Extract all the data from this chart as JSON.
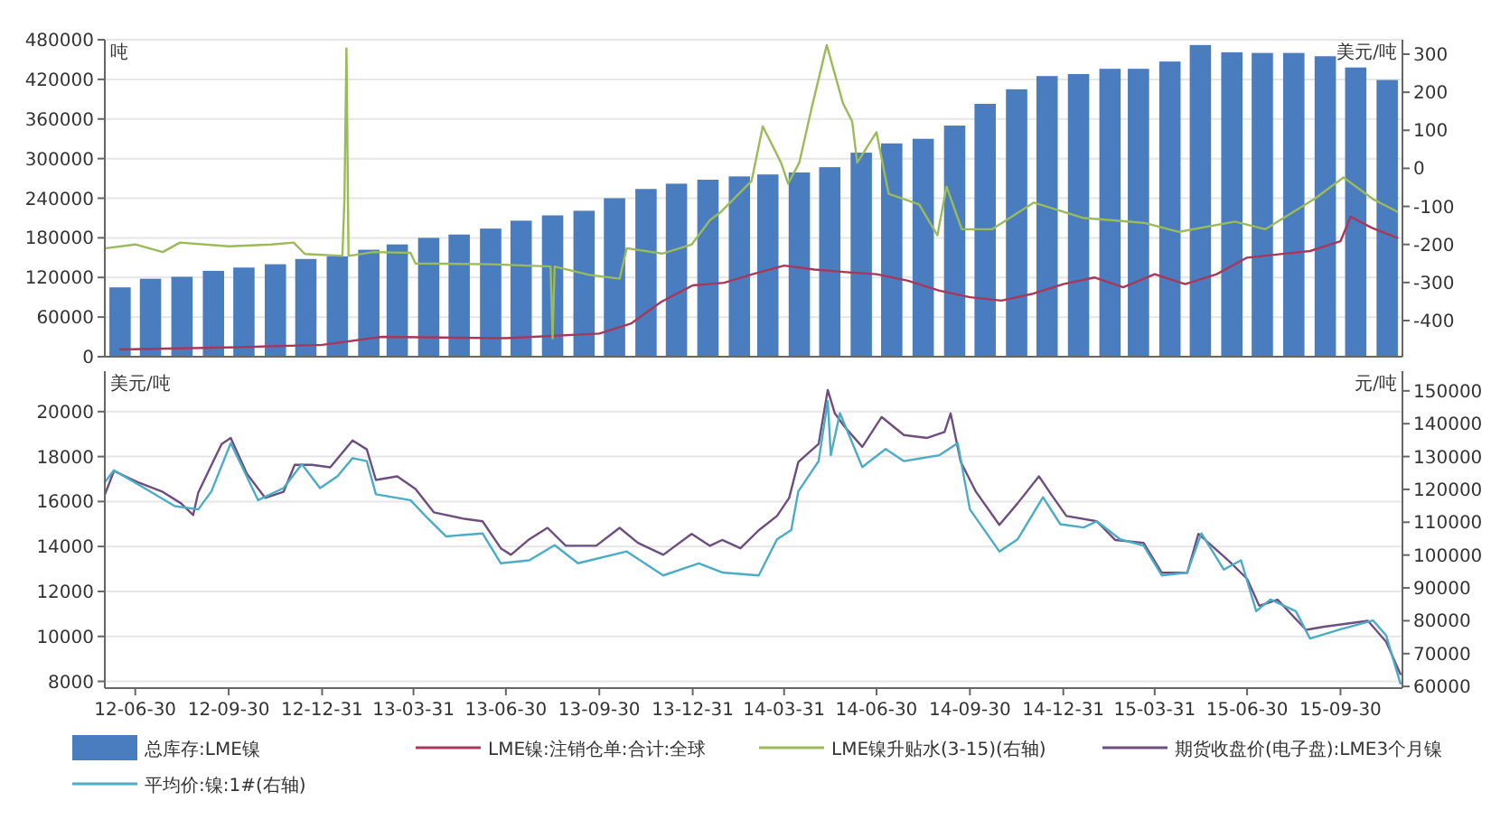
{
  "chart_data": [
    {
      "type": "bar",
      "ylabel": "吨",
      "y2label": "美元/吨",
      "xlim": [
        "2012-05-31",
        "2015-11-30"
      ],
      "ylim": [
        0,
        480000
      ],
      "yticks": [
        0,
        60000,
        120000,
        180000,
        240000,
        300000,
        360000,
        420000,
        480000
      ],
      "y2lim": [
        -495,
        338
      ],
      "y2ticks": [
        -400,
        -300,
        -200,
        -100,
        0,
        100,
        200,
        300
      ],
      "grid": "y",
      "legend": "bottom",
      "tick_labels": "y",
      "series": [
        {
          "name": "总库存:LME镍",
          "color": "#4a7dbf",
          "x": [
            "2012-06-15",
            "2012-07-15",
            "2012-08-15",
            "2012-09-15",
            "2012-10-15",
            "2012-11-15",
            "2012-12-15",
            "2013-01-15",
            "2013-02-15",
            "2013-03-15",
            "2013-04-15",
            "2013-05-15",
            "2013-06-15",
            "2013-07-15",
            "2013-08-15",
            "2013-09-15",
            "2013-10-15",
            "2013-11-15",
            "2013-12-15",
            "2014-01-15",
            "2014-02-15",
            "2014-03-15",
            "2014-04-15",
            "2014-05-15",
            "2014-06-15",
            "2014-07-15",
            "2014-08-15",
            "2014-09-15",
            "2014-10-15",
            "2014-11-15",
            "2014-12-15",
            "2015-01-15",
            "2015-02-15",
            "2015-03-15",
            "2015-04-15",
            "2015-05-15",
            "2015-06-15",
            "2015-07-15",
            "2015-08-15",
            "2015-09-15",
            "2015-10-15",
            "2015-11-15"
          ],
          "values": [
            105000,
            118000,
            121000,
            130000,
            135000,
            140000,
            148000,
            152000,
            162000,
            170000,
            180000,
            185000,
            194000,
            206000,
            214000,
            221000,
            240000,
            254000,
            262000,
            268000,
            273000,
            276000,
            279000,
            287000,
            309000,
            323000,
            330000,
            350000,
            383000,
            405000,
            425000,
            428000,
            436000,
            436000,
            447000,
            472000,
            461000,
            460000,
            460000,
            455000,
            438000,
            419000
          ]
        },
        {
          "name": "LME镍:注销仓单:合计:全球",
          "type": "line",
          "color": "#a8385a",
          "x": [
            "2012-06-15",
            "2012-09-30",
            "2012-12-31",
            "2013-02-28",
            "2013-06-30",
            "2013-09-30",
            "2013-10-31",
            "2013-11-30",
            "2013-12-31",
            "2014-01-31",
            "2014-02-28",
            "2014-03-31",
            "2014-04-30",
            "2014-05-31",
            "2014-06-30",
            "2014-07-31",
            "2014-08-31",
            "2014-09-30",
            "2014-10-31",
            "2014-11-30",
            "2014-12-31",
            "2015-01-31",
            "2015-02-28",
            "2015-03-31",
            "2015-04-30",
            "2015-05-31",
            "2015-06-30",
            "2015-07-31",
            "2015-08-31",
            "2015-09-30",
            "2015-10-10",
            "2015-10-31",
            "2015-11-25"
          ],
          "values": [
            11000,
            14000,
            18000,
            30000,
            28000,
            35000,
            50000,
            83000,
            108000,
            112000,
            125000,
            138000,
            132000,
            128000,
            125000,
            115000,
            100000,
            90000,
            85000,
            95000,
            110000,
            120000,
            105000,
            125000,
            110000,
            125000,
            150000,
            155000,
            160000,
            175000,
            212000,
            195000,
            180000
          ]
        },
        {
          "name": "LME镍升贴水(3-15)(右轴)",
          "type": "line",
          "axis": "y2",
          "color": "#9bbb59",
          "x": [
            "2012-06-01",
            "2012-06-30",
            "2012-07-27",
            "2012-08-13",
            "2012-09-30",
            "2012-11-11",
            "2012-12-03",
            "2012-12-14",
            "2013-01-20",
            "2013-01-22",
            "2013-01-24",
            "2013-01-26",
            "2013-02-20",
            "2013-03-28",
            "2013-04-02",
            "2013-06-15",
            "2013-08-13",
            "2013-08-15",
            "2013-08-17",
            "2013-09-20",
            "2013-10-20",
            "2013-10-27",
            "2013-12-01",
            "2013-12-30",
            "2014-01-17",
            "2014-01-28",
            "2014-02-27",
            "2014-03-10",
            "2014-03-28",
            "2014-04-04",
            "2014-04-15",
            "2014-04-27",
            "2014-05-12",
            "2014-05-28",
            "2014-06-06",
            "2014-06-11",
            "2014-06-30",
            "2014-07-12",
            "2014-08-11",
            "2014-08-29",
            "2014-09-07",
            "2014-09-22",
            "2014-10-22",
            "2014-12-02",
            "2015-01-19",
            "2015-03-20",
            "2015-04-24",
            "2015-06-18",
            "2015-07-18",
            "2015-09-04",
            "2015-10-03",
            "2015-11-01",
            "2015-11-25"
          ],
          "values": [
            -210,
            -200,
            -220,
            -195,
            -205,
            -200,
            -195,
            -225,
            -230,
            -80,
            315,
            -230,
            -220,
            -222,
            -250,
            -252,
            -258,
            -447,
            -258,
            -280,
            -290,
            -210,
            -224,
            -200,
            -136,
            -114,
            -33,
            110,
            15,
            -40,
            15,
            157,
            324,
            171,
            124,
            15,
            95,
            -67,
            -95,
            -176,
            -48,
            -160,
            -160,
            -90,
            -130,
            -143,
            -167,
            -140,
            -160,
            -81,
            -24,
            -81,
            -114
          ]
        }
      ]
    },
    {
      "type": "line",
      "ylabel": "美元/吨",
      "y2label": "元/吨",
      "xlim": [
        "2012-05-31",
        "2015-11-30"
      ],
      "ylim": [
        7700,
        21800
      ],
      "yticks": [
        8000,
        10000,
        12000,
        14000,
        16000,
        18000,
        20000
      ],
      "y2lim": [
        59500,
        156000
      ],
      "y2ticks": [
        60000,
        70000,
        80000,
        90000,
        100000,
        110000,
        120000,
        130000,
        140000,
        150000
      ],
      "grid": "y",
      "legend": "bottom",
      "xticks": [
        {
          "value": "2012-06-30",
          "label": "12-06-30"
        },
        {
          "value": "2012-09-30",
          "label": "12-09-30"
        },
        {
          "value": "2012-12-31",
          "label": "12-12-31"
        },
        {
          "value": "2013-03-31",
          "label": "13-03-31"
        },
        {
          "value": "2013-06-30",
          "label": "13-06-30"
        },
        {
          "value": "2013-09-30",
          "label": "13-09-30"
        },
        {
          "value": "2013-12-31",
          "label": "13-12-31"
        },
        {
          "value": "2014-03-31",
          "label": "14-03-31"
        },
        {
          "value": "2014-06-30",
          "label": "14-06-30"
        },
        {
          "value": "2014-09-30",
          "label": "14-09-30"
        },
        {
          "value": "2014-12-31",
          "label": "14-12-31"
        },
        {
          "value": "2015-03-31",
          "label": "15-03-31"
        },
        {
          "value": "2015-06-30",
          "label": "15-06-30"
        },
        {
          "value": "2015-09-30",
          "label": "15-09-30"
        }
      ],
      "series": [
        {
          "name": "期货收盘价(电子盘):LME3个月镍",
          "color": "#6e4e7e",
          "x": [
            "2012-05-31",
            "2012-06-09",
            "2012-07-04",
            "2012-07-27",
            "2012-08-14",
            "2012-08-26",
            "2012-08-31",
            "2012-09-23",
            "2012-10-02",
            "2012-10-18",
            "2012-11-05",
            "2012-11-23",
            "2012-12-04",
            "2012-12-21",
            "2013-01-08",
            "2013-01-30",
            "2013-02-13",
            "2013-02-22",
            "2013-03-15",
            "2013-04-02",
            "2013-04-20",
            "2013-05-20",
            "2013-06-07",
            "2013-06-25",
            "2013-07-05",
            "2013-07-23",
            "2013-08-10",
            "2013-08-28",
            "2013-09-27",
            "2013-10-20",
            "2013-11-07",
            "2013-12-02",
            "2013-12-30",
            "2014-01-17",
            "2014-01-29",
            "2014-02-16",
            "2014-03-06",
            "2014-03-24",
            "2014-04-05",
            "2014-04-14",
            "2014-05-04",
            "2014-05-13",
            "2014-05-20",
            "2014-05-29",
            "2014-06-16",
            "2014-07-05",
            "2014-07-27",
            "2014-08-19",
            "2014-09-05",
            "2014-09-11",
            "2014-09-21",
            "2014-10-06",
            "2014-10-29",
            "2014-11-16",
            "2014-12-07",
            "2014-12-19",
            "2015-01-03",
            "2015-02-02",
            "2015-02-20",
            "2015-03-20",
            "2015-04-07",
            "2015-05-02",
            "2015-05-13",
            "2015-06-12",
            "2015-06-30",
            "2015-07-12",
            "2015-07-30",
            "2015-08-27",
            "2015-09-14",
            "2015-10-27",
            "2015-11-14",
            "2015-11-28"
          ],
          "values": [
            16300,
            17360,
            16830,
            16430,
            15920,
            15400,
            16400,
            18560,
            18830,
            17230,
            16160,
            16430,
            17630,
            17630,
            17520,
            18720,
            18320,
            16960,
            17120,
            16560,
            15520,
            15230,
            15120,
            13920,
            13630,
            14320,
            14830,
            14030,
            14030,
            14830,
            14160,
            13630,
            14560,
            14030,
            14290,
            13920,
            14720,
            15360,
            16160,
            17760,
            18560,
            20960,
            19920,
            19360,
            18430,
            19760,
            18960,
            18830,
            19090,
            19920,
            17760,
            16430,
            14960,
            15920,
            17120,
            16320,
            15360,
            15120,
            14290,
            14160,
            12830,
            12830,
            14560,
            13360,
            12560,
            11360,
            11630,
            10290,
            10430,
            10690,
            9760,
            8320
          ]
        },
        {
          "name": "平均价:镍:1#(右轴)",
          "axis": "y2",
          "color": "#4bacc6",
          "x": [
            "2012-05-31",
            "2012-06-09",
            "2012-07-09",
            "2012-08-08",
            "2012-08-31",
            "2012-09-13",
            "2012-10-02",
            "2012-10-29",
            "2012-11-23",
            "2012-12-11",
            "2012-12-29",
            "2013-01-15",
            "2013-01-30",
            "2013-02-13",
            "2013-02-22",
            "2013-03-28",
            "2013-04-14",
            "2013-05-02",
            "2013-06-07",
            "2013-06-25",
            "2013-07-23",
            "2013-08-17",
            "2013-09-09",
            "2013-10-27",
            "2013-12-02",
            "2014-01-06",
            "2014-01-29",
            "2014-03-06",
            "2014-03-24",
            "2014-04-07",
            "2014-04-14",
            "2014-05-04",
            "2014-05-13",
            "2014-05-16",
            "2014-05-25",
            "2014-06-16",
            "2014-07-09",
            "2014-07-27",
            "2014-08-31",
            "2014-09-18",
            "2014-09-30",
            "2014-10-29",
            "2014-11-16",
            "2014-12-11",
            "2014-12-28",
            "2015-01-20",
            "2015-02-02",
            "2015-02-25",
            "2015-03-20",
            "2015-04-07",
            "2015-05-02",
            "2015-05-16",
            "2015-06-07",
            "2015-06-24",
            "2015-07-09",
            "2015-07-23",
            "2015-08-17",
            "2015-08-31",
            "2015-09-30",
            "2015-11-01",
            "2015-11-14",
            "2015-11-28"
          ],
          "values": [
            122200,
            125800,
            120400,
            114900,
            113900,
            119400,
            134100,
            116700,
            120400,
            127700,
            120400,
            124000,
            129500,
            128600,
            118500,
            116700,
            111200,
            105700,
            106600,
            97500,
            98400,
            103000,
            97500,
            101100,
            93800,
            97500,
            94700,
            93800,
            104800,
            107600,
            119400,
            128600,
            146900,
            130400,
            143200,
            126800,
            132300,
            128600,
            130400,
            134100,
            113900,
            101100,
            104800,
            117600,
            109400,
            108400,
            110300,
            104800,
            102900,
            93800,
            94700,
            106600,
            95600,
            98400,
            82900,
            86500,
            82900,
            74600,
            77400,
            80100,
            75500,
            60900
          ]
        }
      ]
    }
  ]
}
